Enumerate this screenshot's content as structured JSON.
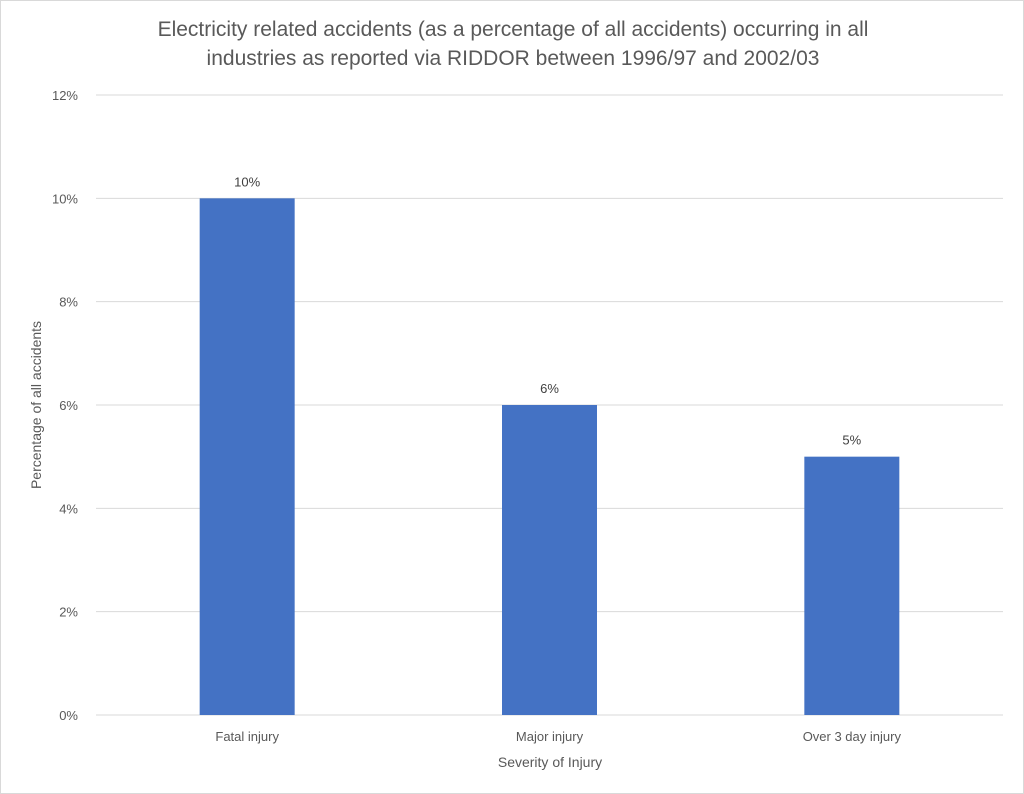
{
  "chart_data": {
    "type": "bar",
    "title": "Electricity related accidents (as a percentage of all accidents) occurring in all industries as reported via RIDDOR between 1996/97 and 2002/03",
    "xlabel": "Severity of Injury",
    "ylabel": "Percentage of all accidents",
    "categories": [
      "Fatal injury",
      "Major injury",
      "Over 3 day injury"
    ],
    "values": [
      10,
      6,
      5
    ],
    "data_labels": [
      "10%",
      "6%",
      "5%"
    ],
    "ylim": [
      0,
      12
    ],
    "yticks": [
      0,
      2,
      4,
      6,
      8,
      10,
      12
    ],
    "ytick_labels": [
      "0%",
      "2%",
      "4%",
      "6%",
      "8%",
      "10%",
      "12%"
    ],
    "grid": true,
    "legend": "none",
    "bar_color": "#4472C4",
    "grid_color": "#d9d9d9"
  }
}
